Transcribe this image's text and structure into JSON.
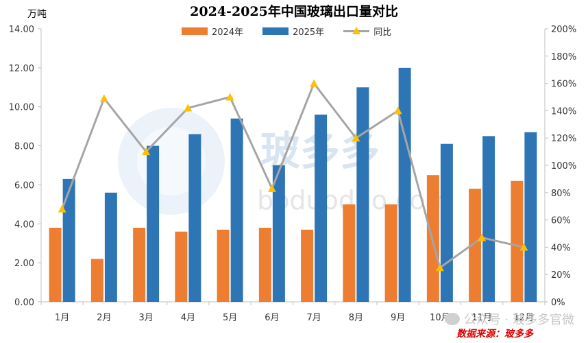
{
  "title": "2024-2025年中国玻璃出口量对比",
  "unit": "万吨",
  "source_text": "数据来源：玻多多",
  "watermark": {
    "chars": "玻多多",
    "domain": "boduoduo.com",
    "wechat": "公众号 · 玻多多官微"
  },
  "colors": {
    "series_2024": "#ed7d31",
    "series_2025": "#2e75b6",
    "yoy_line": "#a5a5a5",
    "yoy_marker": "#ffc000"
  },
  "chart_data": {
    "type": "bar",
    "categories": [
      "1月",
      "2月",
      "3月",
      "4月",
      "5月",
      "6月",
      "7月",
      "8月",
      "9月",
      "10月",
      "11月",
      "12月"
    ],
    "series": [
      {
        "name": "2024年",
        "type": "bar",
        "axis": "left",
        "values": [
          3.8,
          2.2,
          3.8,
          3.6,
          3.7,
          3.8,
          3.7,
          5.0,
          5.0,
          6.5,
          5.8,
          6.2
        ]
      },
      {
        "name": "2025年",
        "type": "bar",
        "axis": "left",
        "values": [
          6.3,
          5.6,
          8.0,
          8.6,
          9.4,
          7.0,
          9.6,
          11.0,
          12.0,
          8.1,
          8.5,
          8.7
        ]
      },
      {
        "name": "同比",
        "type": "line",
        "axis": "right",
        "values": [
          68,
          149,
          110,
          142,
          150,
          83,
          160,
          120,
          140,
          25,
          47,
          40
        ]
      }
    ],
    "y_left": {
      "min": 0,
      "max": 14,
      "step": 2,
      "tick_labels": [
        "0.00",
        "2.00",
        "4.00",
        "6.00",
        "8.00",
        "10.00",
        "12.00",
        "14.00"
      ]
    },
    "y_right": {
      "min": 0,
      "max": 200,
      "step": 20,
      "tick_labels": [
        "0%",
        "20%",
        "40%",
        "60%",
        "80%",
        "100%",
        "120%",
        "140%",
        "160%",
        "180%",
        "200%"
      ]
    },
    "grid": false,
    "legend": "top-center"
  }
}
